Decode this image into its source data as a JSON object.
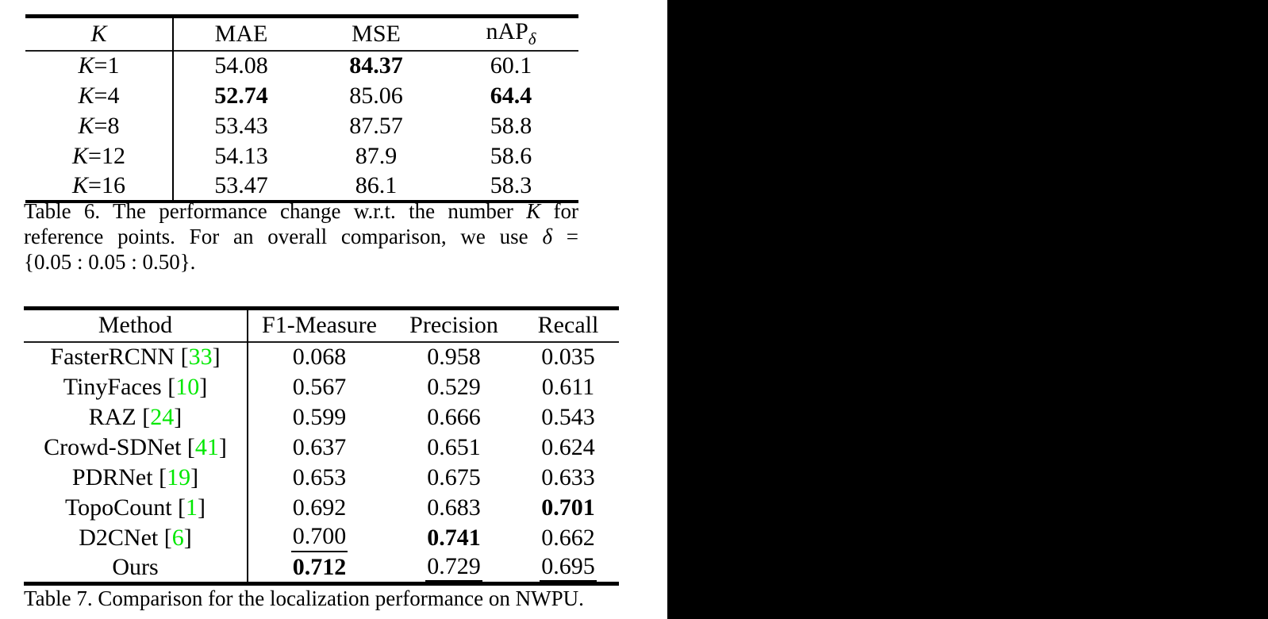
{
  "page": {
    "background_color": "#000000",
    "paper_panel_color": "#ffffff"
  },
  "colors": {
    "text": "#000000",
    "rule": "#000000",
    "citation_green": "#00e800"
  },
  "table6": {
    "headers": {
      "k": "K",
      "mae": "MAE",
      "mse": "MSE",
      "nap_base": "nAP",
      "nap_sub": "δ"
    },
    "rows": [
      {
        "k": "K",
        "eq": "=1",
        "mae": {
          "v": "54.08"
        },
        "mse": {
          "v": "84.37",
          "b": true
        },
        "nap": {
          "v": "60.1"
        }
      },
      {
        "k": "K",
        "eq": "=4",
        "mae": {
          "v": "52.74",
          "b": true
        },
        "mse": {
          "v": "85.06"
        },
        "nap": {
          "v": "64.4",
          "b": true
        }
      },
      {
        "k": "K",
        "eq": "=8",
        "mae": {
          "v": "53.43"
        },
        "mse": {
          "v": "87.57"
        },
        "nap": {
          "v": "58.8"
        }
      },
      {
        "k": "K",
        "eq": "=12",
        "mae": {
          "v": "54.13"
        },
        "mse": {
          "v": "87.9"
        },
        "nap": {
          "v": "58.6"
        }
      },
      {
        "k": "K",
        "eq": "=16",
        "mae": {
          "v": "53.47"
        },
        "mse": {
          "v": "86.1"
        },
        "nap": {
          "v": "58.3"
        }
      }
    ],
    "caption": {
      "line1_pre": "Table 6. The performance change w.r.t.  the number ",
      "line1_var": "K",
      "line1_post": " for",
      "line2_pre": "reference points.  For an overall comparison, we use ",
      "line2_var": "δ",
      "line2_post": " =",
      "line3": "{0.05 : 0.05 : 0.50}."
    }
  },
  "table7": {
    "headers": [
      "Method",
      "F1-Measure",
      "Precision",
      "Recall"
    ],
    "rows": [
      {
        "method": "FasterRCNN",
        "cite": "33",
        "f1": {
          "v": "0.068"
        },
        "prec": {
          "v": "0.958"
        },
        "rec": {
          "v": "0.035"
        }
      },
      {
        "method": "TinyFaces",
        "cite": "10",
        "f1": {
          "v": "0.567"
        },
        "prec": {
          "v": "0.529"
        },
        "rec": {
          "v": "0.611"
        }
      },
      {
        "method": "RAZ",
        "cite": "24",
        "f1": {
          "v": "0.599"
        },
        "prec": {
          "v": "0.666"
        },
        "rec": {
          "v": "0.543"
        }
      },
      {
        "method": "Crowd-SDNet",
        "cite": "41",
        "f1": {
          "v": "0.637"
        },
        "prec": {
          "v": "0.651"
        },
        "rec": {
          "v": "0.624"
        }
      },
      {
        "method": "PDRNet",
        "cite": "19",
        "f1": {
          "v": "0.653"
        },
        "prec": {
          "v": "0.675"
        },
        "rec": {
          "v": "0.633"
        }
      },
      {
        "method": "TopoCount",
        "cite": "1",
        "f1": {
          "v": "0.692"
        },
        "prec": {
          "v": "0.683"
        },
        "rec": {
          "v": "0.701",
          "b": true
        }
      },
      {
        "method": "D2CNet",
        "cite": "6",
        "f1": {
          "v": "0.700",
          "u": true
        },
        "prec": {
          "v": "0.741",
          "b": true
        },
        "rec": {
          "v": "0.662"
        }
      },
      {
        "method": "Ours",
        "cite": null,
        "f1": {
          "v": "0.712",
          "b": true
        },
        "prec": {
          "v": "0.729",
          "u": true
        },
        "rec": {
          "v": "0.695",
          "u": true
        }
      }
    ],
    "caption": "Table 7. Comparison for the localization performance on NWPU."
  },
  "chart_data": [
    {
      "type": "table",
      "title": "Table 6. The performance change w.r.t. the number K for reference points. For an overall comparison, we use δ = {0.05 : 0.05 : 0.50}.",
      "columns": [
        "K",
        "MAE",
        "MSE",
        "nAP_δ"
      ],
      "rows": [
        [
          "K=1",
          54.08,
          84.37,
          60.1
        ],
        [
          "K=4",
          52.74,
          85.06,
          64.4
        ],
        [
          "K=8",
          53.43,
          87.57,
          58.8
        ],
        [
          "K=12",
          54.13,
          87.9,
          58.6
        ],
        [
          "K=16",
          53.47,
          86.1,
          58.3
        ]
      ],
      "bold_cells": [
        [
          "K=1",
          "MSE"
        ],
        [
          "K=4",
          "MAE"
        ],
        [
          "K=4",
          "nAP_δ"
        ]
      ]
    },
    {
      "type": "table",
      "title": "Table 7. Comparison for the localization performance on NWPU.",
      "columns": [
        "Method",
        "F1-Measure",
        "Precision",
        "Recall"
      ],
      "rows": [
        [
          "FasterRCNN [33]",
          0.068,
          0.958,
          0.035
        ],
        [
          "TinyFaces [10]",
          0.567,
          0.529,
          0.611
        ],
        [
          "RAZ [24]",
          0.599,
          0.666,
          0.543
        ],
        [
          "Crowd-SDNet [41]",
          0.637,
          0.651,
          0.624
        ],
        [
          "PDRNet [19]",
          0.653,
          0.675,
          0.633
        ],
        [
          "TopoCount [1]",
          0.692,
          0.683,
          0.701
        ],
        [
          "D2CNet [6]",
          0.7,
          0.741,
          0.662
        ],
        [
          "Ours",
          0.712,
          0.729,
          0.695
        ]
      ],
      "bold_cells": [
        [
          "TopoCount [1]",
          "Recall"
        ],
        [
          "D2CNet [6]",
          "Precision"
        ],
        [
          "Ours",
          "F1-Measure"
        ]
      ],
      "underline_cells": [
        [
          "D2CNet [6]",
          "F1-Measure"
        ],
        [
          "Ours",
          "Precision"
        ],
        [
          "Ours",
          "Recall"
        ]
      ]
    }
  ]
}
